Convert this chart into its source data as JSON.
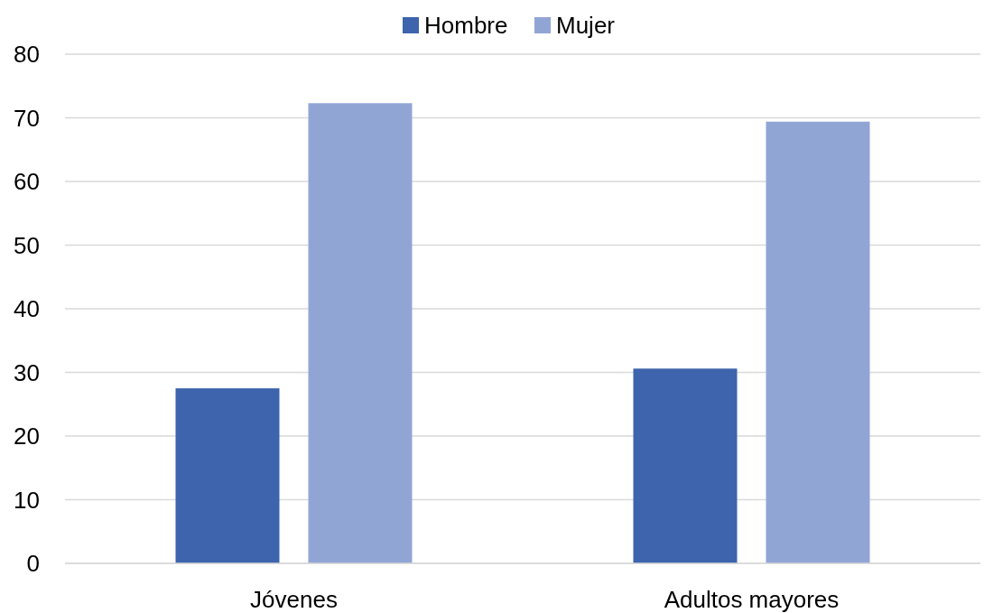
{
  "chart_data": {
    "type": "bar",
    "categories": [
      "Jóvenes",
      "Adultos mayores"
    ],
    "series": [
      {
        "name": "Hombre",
        "color": "#3d64ac",
        "values": [
          27.5,
          30.6
        ]
      },
      {
        "name": "Mujer",
        "color": "#91a5d5",
        "values": [
          72.3,
          69.4
        ]
      }
    ],
    "ylim": [
      0,
      80
    ],
    "yticks": [
      0,
      10,
      20,
      30,
      40,
      50,
      60,
      70,
      80
    ],
    "grid": "y",
    "legend": "top"
  }
}
